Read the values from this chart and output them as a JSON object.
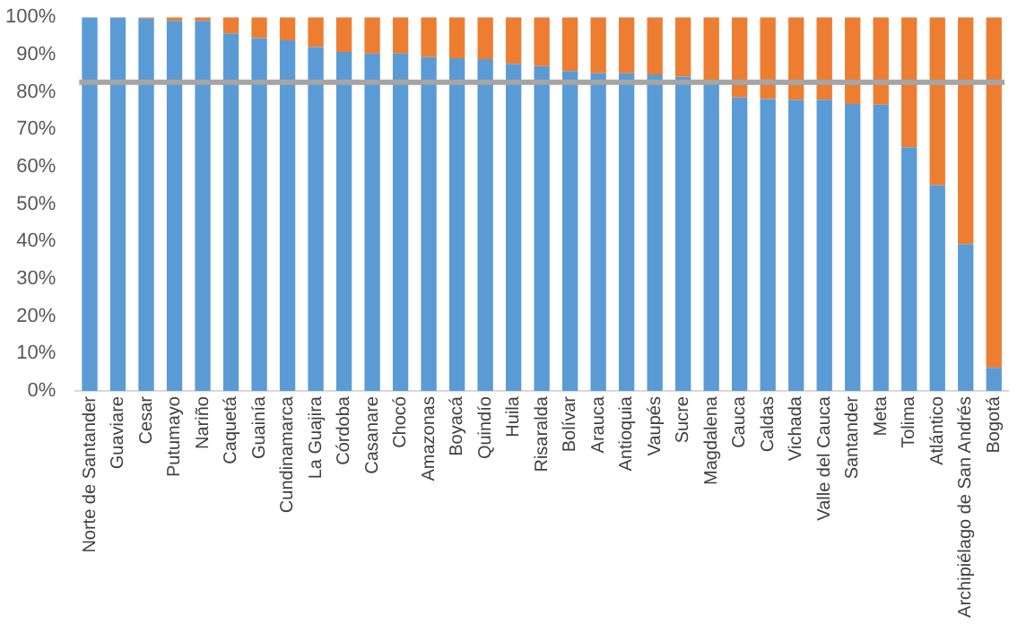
{
  "chart_data": {
    "type": "bar",
    "stacked": true,
    "categories": [
      "Norte de Santander",
      "Guaviare",
      "Cesar",
      "Putumayo",
      "Nariño",
      "Caquetá",
      "Guainía",
      "Cundinamarca",
      "La Guajira",
      "Córdoba",
      "Casanare",
      "Chocó",
      "Amazonas",
      "Boyacá",
      "Quindío",
      "Huila",
      "Risaralda",
      "Bolívar",
      "Arauca",
      "Antioquia",
      "Vaupés",
      "Sucre",
      "Magdalena",
      "Cauca",
      "Caldas",
      "Vichada",
      "Valle del Cauca",
      "Santander",
      "Meta",
      "Tolima",
      "Atlántico",
      "Archipiélago de San Andrés",
      "Bogotá"
    ],
    "series": [
      {
        "color": "#5b9bd5",
        "values": [
          100,
          100,
          99.6,
          99,
          99,
          95.7,
          94.4,
          93.8,
          92,
          90.7,
          90.3,
          90.3,
          89.3,
          89,
          88.8,
          87.5,
          86.9,
          85.6,
          85,
          85,
          84.7,
          84.1,
          82.8,
          78.5,
          78.1,
          77.9,
          77.9,
          76.8,
          76.6,
          65.2,
          55,
          39.3,
          6.2
        ]
      },
      {
        "color": "#ed7d31",
        "values": [
          0,
          0,
          0.4,
          1,
          1,
          4.3,
          5.6,
          6.2,
          8,
          9.3,
          9.7,
          9.7,
          10.7,
          11,
          11.2,
          12.5,
          13.1,
          14.4,
          15,
          15,
          15.3,
          15.9,
          17.2,
          21.5,
          21.9,
          22.1,
          22.1,
          23.2,
          23.4,
          34.8,
          45,
          60.7,
          93.8
        ]
      }
    ],
    "ylim": [
      0,
      100
    ],
    "yticks": [
      {
        "value": 0,
        "label": "0%"
      },
      {
        "value": 10,
        "label": "10%"
      },
      {
        "value": 20,
        "label": "20%"
      },
      {
        "value": 30,
        "label": "30%"
      },
      {
        "value": 40,
        "label": "40%"
      },
      {
        "value": 50,
        "label": "50%"
      },
      {
        "value": 60,
        "label": "60%"
      },
      {
        "value": 70,
        "label": "70%"
      },
      {
        "value": 80,
        "label": "80%"
      },
      {
        "value": 90,
        "label": "90%"
      },
      {
        "value": 100,
        "label": "100%"
      }
    ],
    "grid": false,
    "legend": false,
    "ref_lines": [
      {
        "axis": "y",
        "value": 82.6,
        "color": "#a5a5a5"
      }
    ]
  }
}
